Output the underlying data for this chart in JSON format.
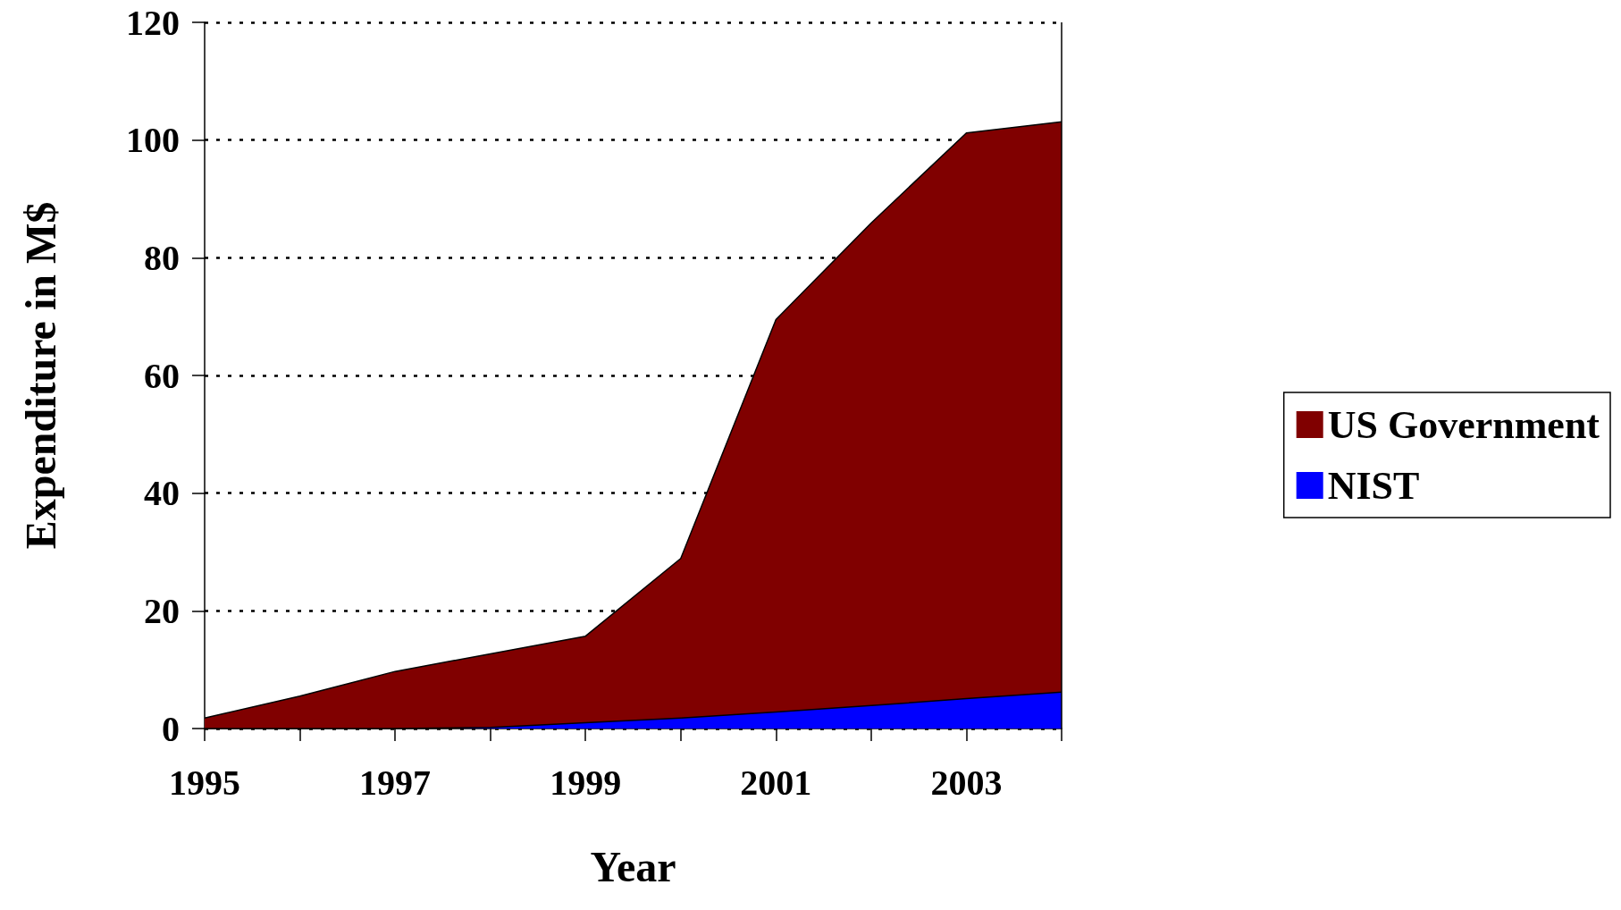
{
  "chart_data": {
    "type": "area",
    "xlabel": "Year",
    "ylabel": "Expenditure in M$",
    "x": [
      1995,
      1996,
      1997,
      1998,
      1999,
      2000,
      2001,
      2002,
      2003,
      2004
    ],
    "series": [
      {
        "name": "US Government",
        "color": "#800000",
        "values": [
          1.8,
          5.5,
          9.7,
          12.7,
          15.7,
          28.9,
          69.5,
          85.9,
          101.2,
          103.1
        ]
      },
      {
        "name": "NIST",
        "color": "#0000ff",
        "values": [
          0,
          0,
          0,
          0.2,
          1.0,
          1.8,
          2.8,
          3.9,
          5.1,
          6.2
        ]
      }
    ],
    "xlim": [
      1995,
      2004
    ],
    "xticks": [
      1995,
      {
        "value": 1996,
        "label": null
      },
      1997,
      {
        "value": 1998,
        "label": null
      },
      1999,
      {
        "value": 2000,
        "label": null
      },
      2001,
      {
        "value": 2002,
        "label": null
      },
      2003,
      {
        "value": 2004,
        "label": null
      }
    ],
    "ylim": [
      0,
      120
    ],
    "yticks": [
      0,
      20,
      40,
      60,
      80,
      100,
      120
    ],
    "grid": "y",
    "line_style": "solid",
    "legend": "right"
  }
}
